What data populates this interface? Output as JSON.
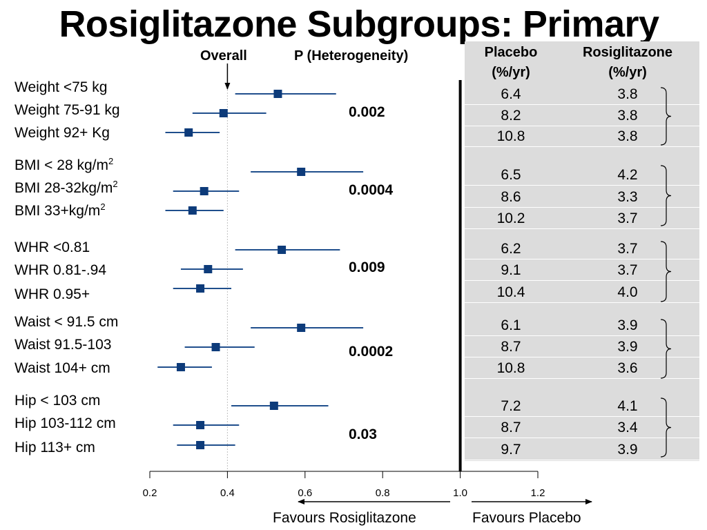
{
  "title": "Rosiglitazone Subgroups: Primary",
  "headers": {
    "overall": "Overall",
    "p_heterogeneity": "P (Heterogeneity)",
    "placebo_line1": "Placebo",
    "placebo_line2": "(%/yr)",
    "rosi_line1": "Rosiglitazone",
    "rosi_line2": "(%/yr)"
  },
  "favours": {
    "left": "Favours Rosiglitazone",
    "right": "Favours Placebo"
  },
  "chart_data": {
    "type": "forest",
    "xlim": [
      0.2,
      1.2
    ],
    "xticks": [
      "0.2",
      "0.4",
      "0.6",
      "0.8",
      "1.0",
      "1.2"
    ],
    "reference_line": 1.0,
    "overall_line": 0.4,
    "groups": [
      {
        "p": "0.002",
        "rows": [
          {
            "label": "Weight <75 kg",
            "est": 0.53,
            "lo": 0.42,
            "hi": 0.68,
            "placebo": "6.4",
            "rosi": "3.8"
          },
          {
            "label": "Weight 75-91 kg",
            "est": 0.39,
            "lo": 0.31,
            "hi": 0.5,
            "placebo": "8.2",
            "rosi": "3.8"
          },
          {
            "label": "Weight 92+ Kg",
            "est": 0.3,
            "lo": 0.24,
            "hi": 0.38,
            "placebo": "10.8",
            "rosi": "3.8"
          }
        ]
      },
      {
        "p": "0.0004",
        "rows": [
          {
            "label": "BMI < 28 kg/m",
            "sup": "2",
            "est": 0.59,
            "lo": 0.46,
            "hi": 0.75,
            "placebo": "6.5",
            "rosi": "4.2"
          },
          {
            "label": "BMI 28-32kg/m",
            "sup": "2",
            "est": 0.34,
            "lo": 0.26,
            "hi": 0.43,
            "placebo": "8.6",
            "rosi": "3.3"
          },
          {
            "label": "BMI 33+kg/m",
            "sup": "2",
            "est": 0.31,
            "lo": 0.24,
            "hi": 0.39,
            "placebo": "10.2",
            "rosi": "3.7"
          }
        ]
      },
      {
        "p": "0.009",
        "rows": [
          {
            "label": "WHR <0.81",
            "est": 0.54,
            "lo": 0.42,
            "hi": 0.69,
            "placebo": "6.2",
            "rosi": "3.7"
          },
          {
            "label": "WHR 0.81-.94",
            "est": 0.35,
            "lo": 0.28,
            "hi": 0.44,
            "placebo": "9.1",
            "rosi": "3.7"
          },
          {
            "label": "WHR 0.95+",
            "est": 0.33,
            "lo": 0.26,
            "hi": 0.41,
            "placebo": "10.4",
            "rosi": "4.0"
          }
        ]
      },
      {
        "p": "0.0002",
        "rows": [
          {
            "label": "Waist < 91.5 cm",
            "est": 0.59,
            "lo": 0.46,
            "hi": 0.75,
            "placebo": "6.1",
            "rosi": "3.9"
          },
          {
            "label": "Waist 91.5-103",
            "est": 0.37,
            "lo": 0.29,
            "hi": 0.47,
            "placebo": "8.7",
            "rosi": "3.9"
          },
          {
            "label": "Waist 104+ cm",
            "est": 0.28,
            "lo": 0.22,
            "hi": 0.36,
            "placebo": "10.8",
            "rosi": "3.6"
          }
        ]
      },
      {
        "p": "0.03",
        "rows": [
          {
            "label": "Hip < 103 cm",
            "est": 0.52,
            "lo": 0.41,
            "hi": 0.66,
            "placebo": "7.2",
            "rosi": "4.1"
          },
          {
            "label": "Hip 103-112 cm",
            "est": 0.33,
            "lo": 0.26,
            "hi": 0.43,
            "placebo": "8.7",
            "rosi": "3.4"
          },
          {
            "label": "Hip 113+ cm",
            "est": 0.33,
            "lo": 0.27,
            "hi": 0.42,
            "placebo": "9.7",
            "rosi": "3.9"
          }
        ]
      }
    ]
  }
}
